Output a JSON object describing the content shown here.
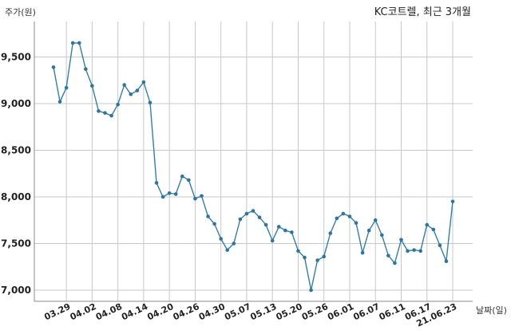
{
  "chart_data": {
    "type": "line",
    "title": "KC코트렐, 최근 3개월",
    "ylabel": "주가(원)",
    "xlabel": "날짜(일)",
    "ylim": [
      6880,
      9880
    ],
    "yticks": [
      7000,
      7500,
      8000,
      8500,
      9000,
      9500
    ],
    "ytick_labels": [
      "7,000",
      "7,500",
      "8,000",
      "8,500",
      "9,000",
      "9,500"
    ],
    "grid": true,
    "xtick_labels": [
      "03.29",
      "04.02",
      "04.08",
      "04.14",
      "04.20",
      "04.26",
      "04.30",
      "05.07",
      "05.13",
      "05.20",
      "05.26",
      "06.01",
      "06.07",
      "06.11",
      "06.17",
      "21.06.23"
    ],
    "xtick_index": [
      3,
      7,
      11,
      15,
      19,
      23,
      27,
      31,
      35,
      39,
      43,
      47,
      51,
      55,
      59,
      63
    ],
    "series": [
      {
        "color": "#2f7fb0",
        "values": [
          9390,
          9020,
          9170,
          9650,
          9650,
          9370,
          9190,
          8920,
          8900,
          8870,
          8990,
          9200,
          9100,
          9140,
          9230,
          9010,
          8150,
          8000,
          8040,
          8030,
          8220,
          8180,
          7980,
          8010,
          7790,
          7710,
          7550,
          7430,
          7500,
          7760,
          7820,
          7850,
          7780,
          7700,
          7530,
          7680,
          7640,
          7620,
          7420,
          7350,
          7000,
          7320,
          7360,
          7610,
          7770,
          7820,
          7790,
          7720,
          7400,
          7640,
          7750,
          7590,
          7370,
          7290,
          7540,
          7420,
          7430,
          7420,
          7700,
          7650,
          7480,
          7310,
          7950
        ]
      }
    ]
  }
}
